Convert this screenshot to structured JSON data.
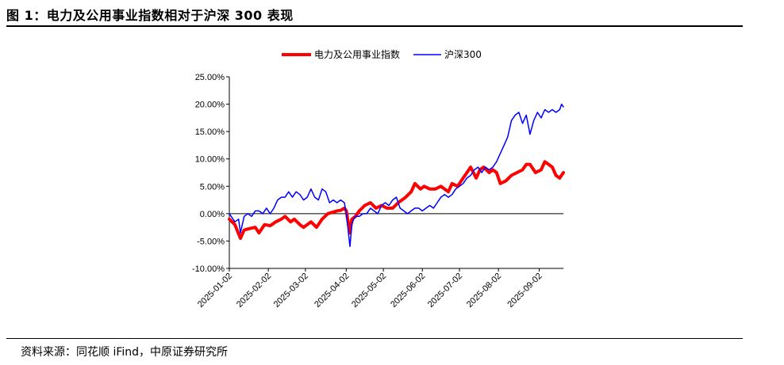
{
  "header": {
    "title": "图 1：电力及公用事业指数相对于沪深 300 表现"
  },
  "footer": {
    "source": "资料来源：同花顺 iFind，中原证券研究所"
  },
  "chart_data": {
    "type": "line",
    "title": "",
    "xlabel": "",
    "ylabel": "",
    "ylim": [
      -10,
      25
    ],
    "y_ticks": [
      25,
      20,
      15,
      10,
      5,
      0,
      -5,
      -10
    ],
    "y_tick_labels": [
      "25.00%",
      "20.00%",
      "15.00%",
      "10.00%",
      "5.00%",
      "0.00%",
      "-5.00%",
      "-10.00%"
    ],
    "x_range": [
      0,
      180
    ],
    "x_ticks": [
      0,
      21,
      41,
      63,
      83,
      104,
      124,
      145,
      167
    ],
    "x_tick_labels": [
      "2025-01-02",
      "2025-02-02",
      "2025-03-02",
      "2025-04-02",
      "2025-05-02",
      "2025-06-02",
      "2025-07-02",
      "2025-08-02",
      "2025-09-02"
    ],
    "legend_position": "top-center",
    "series": [
      {
        "name": "电力及公用事业指数",
        "color": "#ff0000",
        "style": "thick",
        "x": [
          0,
          3,
          6,
          8,
          10,
          14,
          16,
          19,
          22,
          25,
          28,
          30,
          33,
          35,
          38,
          40,
          42,
          44,
          47,
          50,
          53,
          56,
          58,
          60,
          62,
          63,
          64,
          65,
          66,
          68,
          70,
          73,
          76,
          79,
          82,
          85,
          88,
          91,
          93,
          95,
          98,
          100,
          103,
          105,
          108,
          111,
          114,
          116,
          118,
          120,
          123,
          126,
          128,
          130,
          133,
          135,
          137,
          140,
          142,
          144,
          146,
          149,
          152,
          155,
          158,
          160,
          162,
          165,
          168,
          170,
          172,
          174,
          176,
          178,
          180
        ],
        "values": [
          -1.0,
          -2.0,
          -4.5,
          -3.0,
          -2.8,
          -2.5,
          -3.5,
          -2.0,
          -2.2,
          -1.5,
          -1.0,
          -0.5,
          -1.5,
          -1.0,
          -2.0,
          -2.5,
          -2.0,
          -1.5,
          -2.5,
          -1.0,
          0.0,
          0.3,
          0.5,
          0.6,
          1.0,
          0.5,
          -1.5,
          -3.5,
          -1.0,
          -0.5,
          0.5,
          1.5,
          2.0,
          1.0,
          1.5,
          1.0,
          1.0,
          2.0,
          2.5,
          3.0,
          4.0,
          5.5,
          4.5,
          5.0,
          4.5,
          4.5,
          5.0,
          4.5,
          4.0,
          5.5,
          5.0,
          6.5,
          7.5,
          8.5,
          6.5,
          8.0,
          8.5,
          7.5,
          8.0,
          7.5,
          5.5,
          6.0,
          7.0,
          7.5,
          8.0,
          9.0,
          9.0,
          7.5,
          8.0,
          9.5,
          9.0,
          8.5,
          7.0,
          6.5,
          7.5
        ]
      },
      {
        "name": "沪深300",
        "color": "#0000ff",
        "style": "thin",
        "x": [
          0,
          2,
          3,
          5,
          6,
          8,
          10,
          12,
          14,
          16,
          18,
          20,
          22,
          24,
          26,
          28,
          30,
          32,
          34,
          36,
          38,
          40,
          42,
          44,
          46,
          48,
          50,
          52,
          54,
          56,
          58,
          60,
          62,
          63,
          64,
          65,
          66,
          67,
          68,
          70,
          72,
          74,
          76,
          78,
          80,
          82,
          84,
          86,
          88,
          90,
          92,
          94,
          96,
          98,
          100,
          102,
          104,
          106,
          108,
          110,
          112,
          114,
          116,
          118,
          120,
          122,
          124,
          126,
          128,
          130,
          132,
          134,
          136,
          138,
          140,
          142,
          144,
          146,
          148,
          150,
          152,
          154,
          156,
          158,
          160,
          162,
          164,
          166,
          168,
          170,
          172,
          174,
          176,
          178,
          179,
          180
        ],
        "values": [
          0.0,
          -1.0,
          -1.5,
          -1.0,
          -3.5,
          -0.5,
          0.0,
          -0.5,
          0.5,
          0.5,
          0.0,
          1.0,
          0.0,
          1.0,
          2.5,
          3.0,
          3.0,
          4.0,
          3.0,
          4.0,
          3.5,
          2.5,
          3.0,
          4.5,
          3.0,
          2.5,
          4.5,
          4.0,
          2.0,
          2.5,
          2.0,
          2.5,
          2.0,
          0.0,
          -3.0,
          -6.0,
          -2.0,
          -1.0,
          -0.5,
          -0.5,
          0.0,
          0.0,
          1.0,
          0.5,
          0.0,
          1.5,
          2.0,
          1.5,
          2.5,
          3.0,
          1.0,
          0.5,
          0.0,
          0.5,
          1.0,
          1.0,
          0.5,
          1.0,
          1.5,
          1.0,
          2.0,
          3.0,
          3.5,
          3.0,
          3.5,
          4.5,
          5.0,
          5.5,
          6.5,
          7.0,
          8.0,
          8.5,
          7.5,
          8.5,
          8.0,
          8.5,
          9.5,
          11.0,
          12.5,
          14.0,
          17.0,
          18.0,
          18.5,
          16.5,
          18.0,
          14.5,
          17.0,
          18.5,
          17.5,
          19.0,
          18.5,
          19.0,
          18.5,
          19.0,
          20.0,
          19.5
        ]
      }
    ]
  }
}
